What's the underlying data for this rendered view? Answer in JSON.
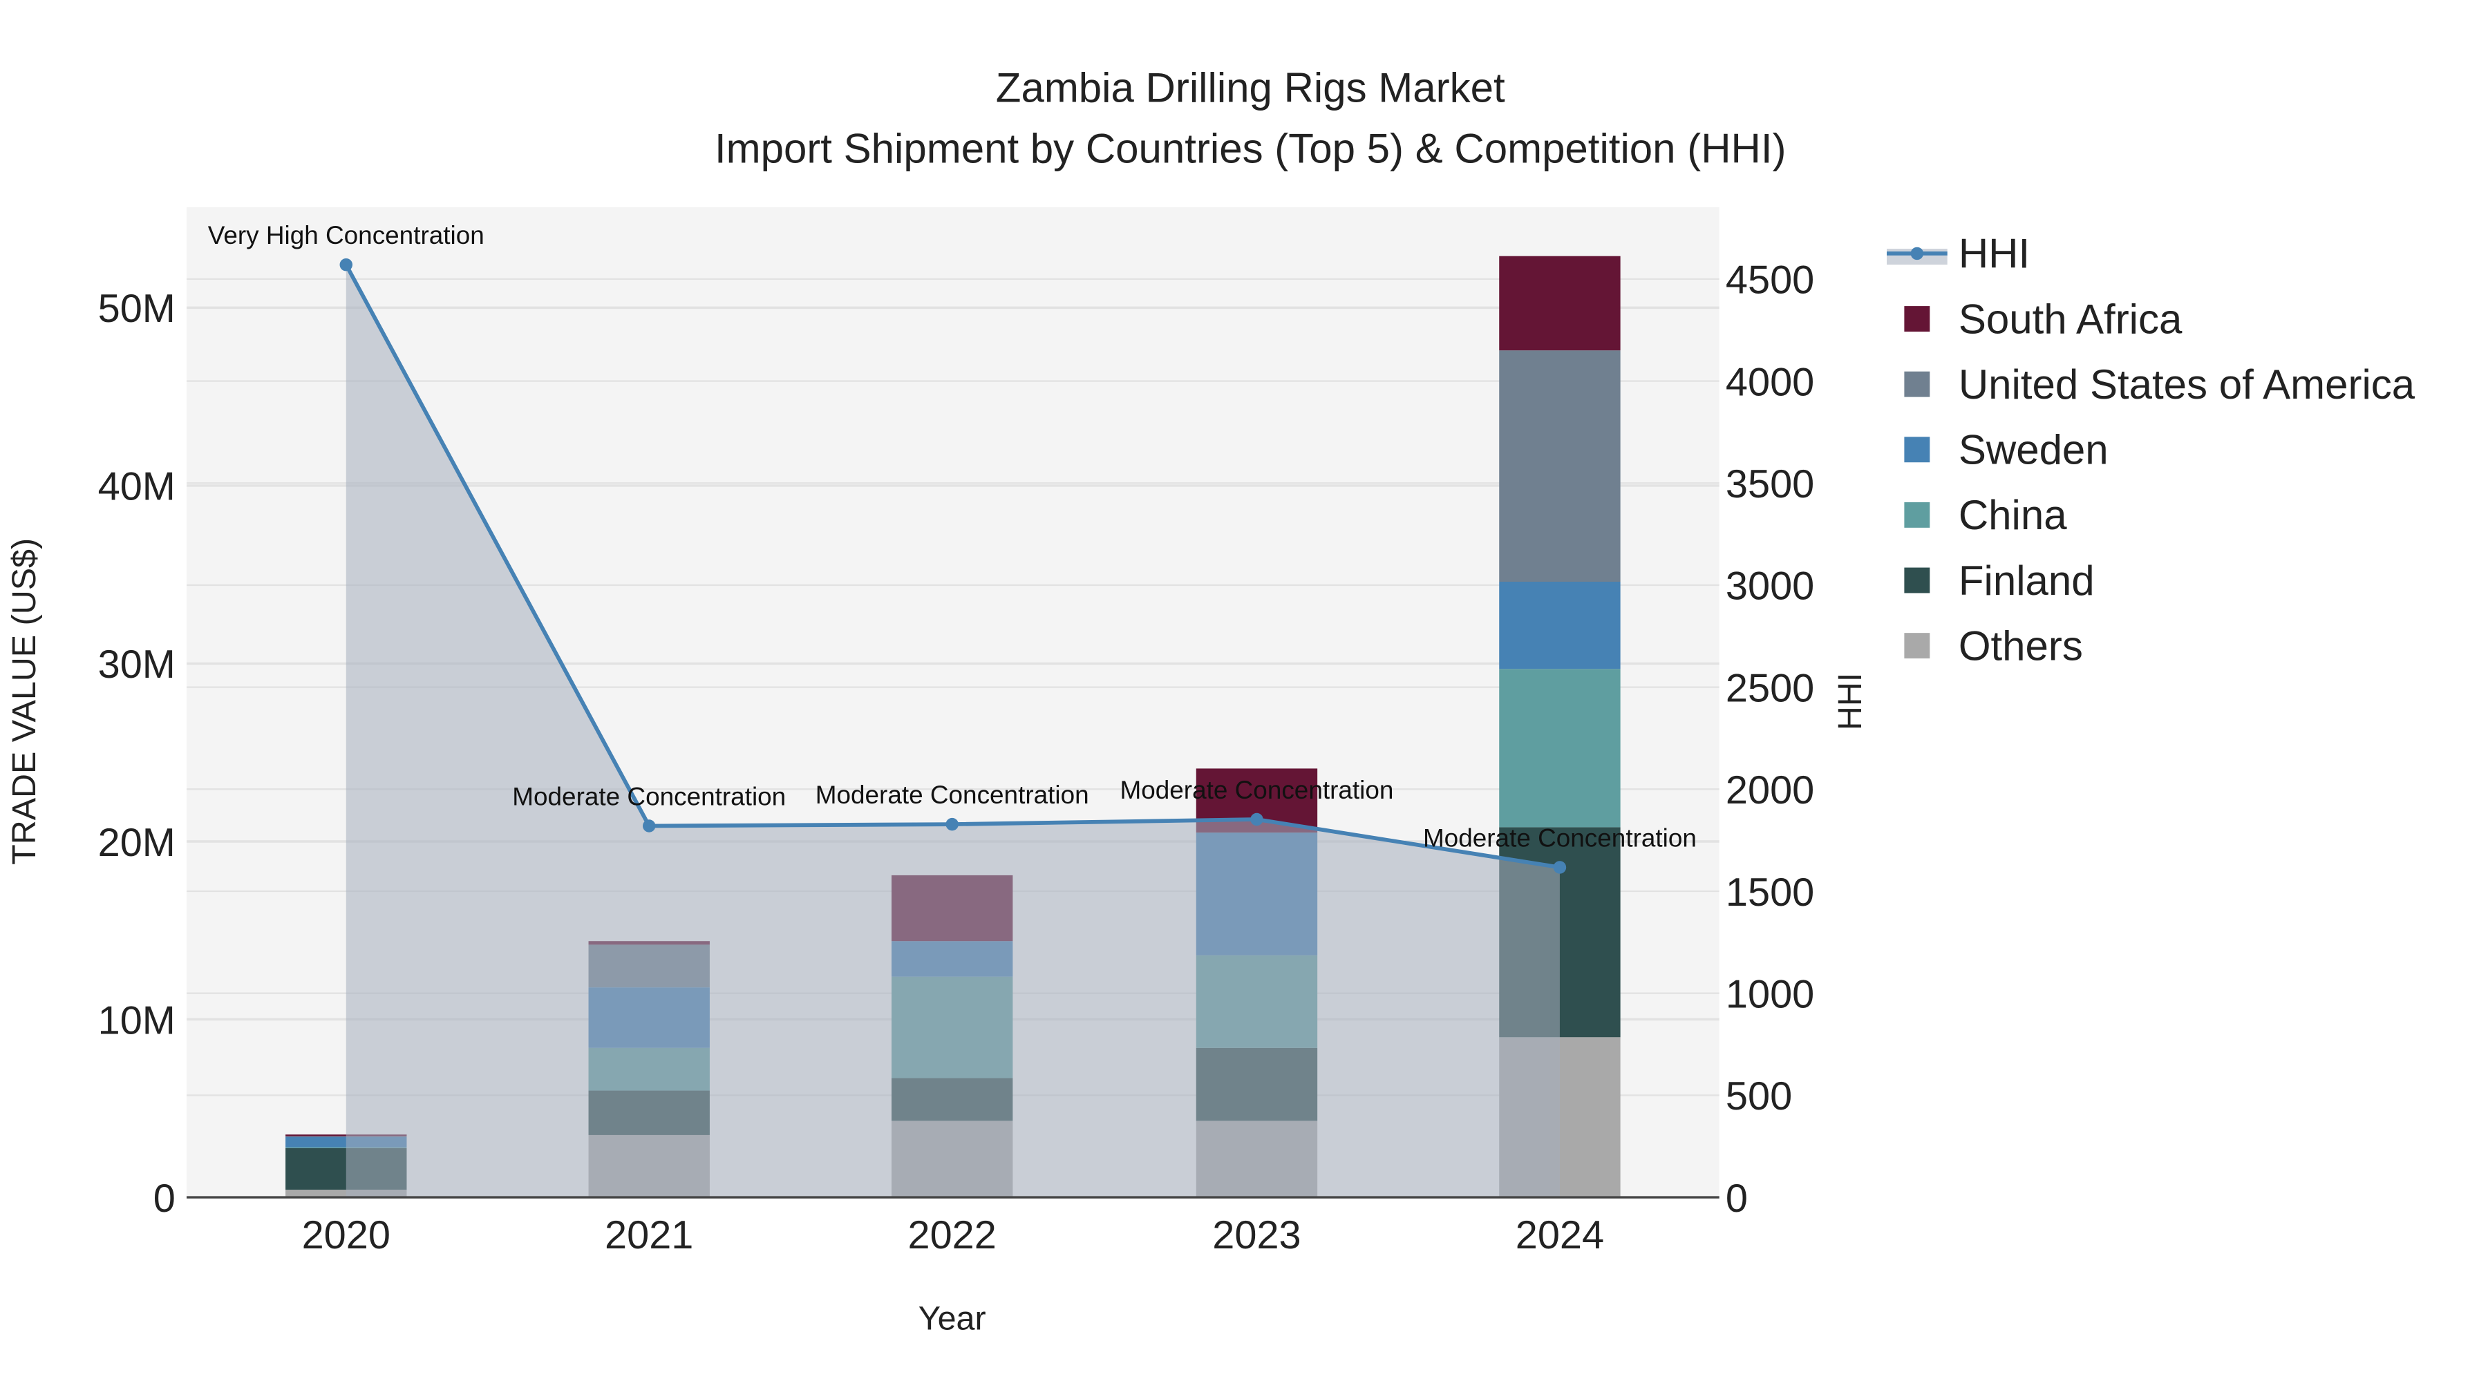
{
  "chart_data": {
    "type": "bar",
    "title": "Zambia Drilling Rigs Market",
    "subtitle": "Import Shipment by Countries (Top 5) & Competition (HHI)",
    "xlabel": "Year",
    "ylabel": "TRADE VALUE (US$)",
    "y2label": "HHI",
    "categories": [
      "2020",
      "2021",
      "2022",
      "2023",
      "2024"
    ],
    "ylim": [
      0,
      55
    ],
    "y_ticks": [
      0,
      10,
      20,
      30,
      40,
      50
    ],
    "y_tick_labels": [
      "0",
      "10M",
      "20M",
      "30M",
      "40M",
      "50M"
    ],
    "y2lim": [
      0,
      4850
    ],
    "y2_ticks": [
      0,
      500,
      1000,
      1500,
      2000,
      2500,
      3000,
      3500,
      4000,
      4500
    ],
    "y2_tick_labels": [
      "0",
      "500",
      "1000",
      "1500",
      "2000",
      "2500",
      "3000",
      "3500",
      "4000",
      "4500"
    ],
    "units": "US$ millions",
    "series": [
      {
        "name": "Others",
        "color": "#A9A9A9",
        "values": [
          0.43,
          3.5,
          4.3,
          4.3,
          9.0
        ]
      },
      {
        "name": "Finland",
        "color": "#2F4F4F",
        "values": [
          2.33,
          2.5,
          2.4,
          4.1,
          11.8
        ]
      },
      {
        "name": "China",
        "color": "#5F9EA0",
        "values": [
          0.05,
          2.4,
          5.7,
          5.2,
          8.9
        ]
      },
      {
        "name": "Sweden",
        "color": "#4682B4",
        "values": [
          0.6,
          3.4,
          2.0,
          6.9,
          4.9
        ]
      },
      {
        "name": "United States of America",
        "color": "#708090",
        "values": [
          0.02,
          2.4,
          0.0,
          0.0,
          13.0
        ]
      },
      {
        "name": "South Africa",
        "color": "#641535",
        "values": [
          0.1,
          0.2,
          3.7,
          3.6,
          5.3
        ]
      }
    ],
    "legend_order": [
      "South Africa",
      "United States of America",
      "Sweden",
      "China",
      "Finland",
      "Others"
    ],
    "hhi": {
      "name": "HHI",
      "color": "#4682B4",
      "values": [
        4570,
        1820,
        1828,
        1852,
        1617
      ],
      "labels": [
        "Very High Concentration",
        "Moderate Concentration",
        "Moderate Concentration",
        "Moderate Concentration",
        "Moderate Concentration"
      ]
    },
    "legend_position": "right"
  }
}
